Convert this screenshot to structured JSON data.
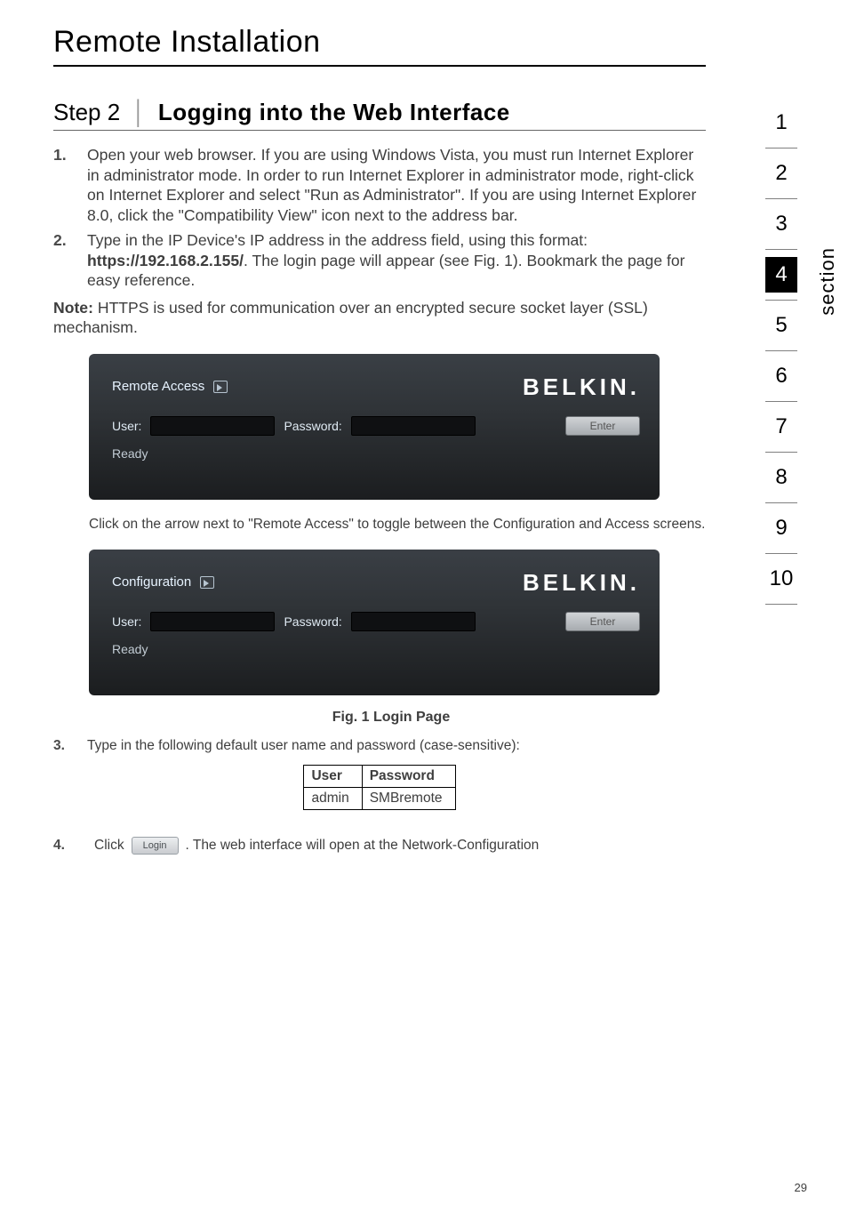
{
  "page": {
    "title": "Remote Installation",
    "step_label": "Step 2",
    "step_name": "Logging into the Web Interface",
    "page_number": "29"
  },
  "list": {
    "n1": "1.",
    "b1": "Open your web browser. If you are using Windows Vista, you must run Internet Explorer in administrator mode. In order to run Internet Explorer in administrator mode, right-click on Internet Explorer and select \"Run as Administrator\". If you are using Internet Explorer 8.0, click the \"Compatibility View\" icon next to the address bar.",
    "n2": "2.",
    "b2_pre": "Type in the IP Device's IP address in the address field, using this format: ",
    "b2_url": "https://192.168.2.155/",
    "b2_post": ". The login page will appear (see Fig. 1). Bookmark the page for easy reference.",
    "n3": "3.",
    "b3": "Type in the following default user name and password (case-sensitive):",
    "n4": "4.",
    "b4_pre": "Click ",
    "b4_post": ". The web interface will open at the Network-Configuration"
  },
  "note": {
    "label": "Note:",
    "text": " HTTPS is used for communication over an encrypted secure socket layer (SSL) mechanism."
  },
  "shot": {
    "mode_remote": "Remote Access",
    "mode_config": "Configuration",
    "brand": "BELKIN.",
    "user_label": "User:",
    "pass_label": "Password:",
    "enter": "Enter",
    "ready": "Ready"
  },
  "caption": {
    "toggle": "Click on the arrow next to \"Remote Access\" to toggle between the Configuration and Access screens.",
    "fig": "Fig. 1 Login Page"
  },
  "table": {
    "h_user": "User",
    "h_pass": "Password",
    "r_user": "admin",
    "r_pass": "SMBremote"
  },
  "loginbtn": "Login",
  "nav": {
    "n1": "1",
    "n2": "2",
    "n3": "3",
    "n4": "4",
    "n5": "5",
    "n6": "6",
    "n7": "7",
    "n8": "8",
    "n9": "9",
    "n10": "10",
    "section": "section"
  },
  "style": {
    "body_fontsize": 17.6,
    "small_fontsize": 15.5,
    "colors": {
      "text": "#3e3e3e",
      "rule": "#000000",
      "subrule": "#666666",
      "sidenav_sep": "#808080",
      "shot_bg_top": "#3a3f45",
      "shot_bg_bot": "#1b1d1f",
      "shot_text": "#e6e6e6",
      "brand_text": "#ffffff",
      "btn_top": "#d0d3d6",
      "btn_bot": "#a7abaf"
    }
  }
}
